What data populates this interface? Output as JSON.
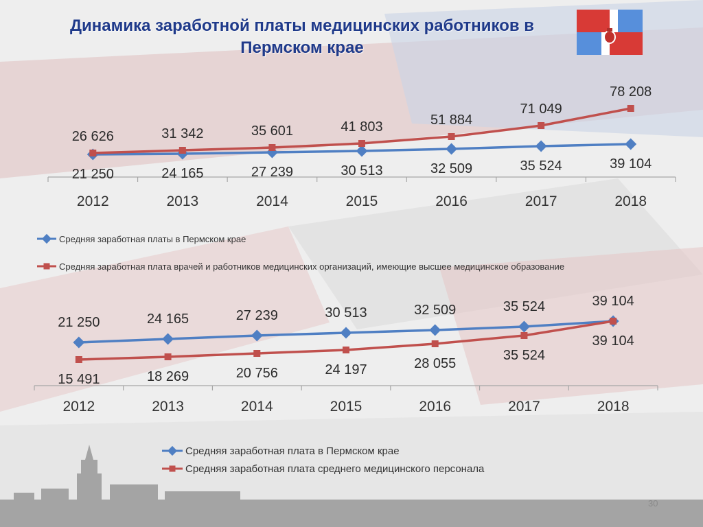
{
  "slide": {
    "title_line1": "Динамика заработной платы   медицинских работников в",
    "title_line2": "Пермском крае",
    "page_number": "30"
  },
  "colors": {
    "blue": "#4f7fc3",
    "red": "#c0504d",
    "title": "#1f3a8a"
  },
  "chart_data": [
    {
      "type": "line",
      "categories": [
        "2012",
        "2013",
        "2014",
        "2015",
        "2016",
        "2017",
        "2018"
      ],
      "series": [
        {
          "name": "Средняя заработная платы в Пермском крае",
          "values": [
            21250,
            24165,
            27239,
            30513,
            32509,
            35524,
            39104
          ],
          "labels": [
            "21 250",
            "24 165",
            "27 239",
            "30 513",
            "32 509",
            "35 524",
            "39 104"
          ],
          "color": "#4f7fc3",
          "label_position": "below"
        },
        {
          "name": "Средняя заработная плата врачей и работников медицинских организаций, имеющие высшее медицинское образование",
          "values": [
            26626,
            31342,
            35601,
            41803,
            51884,
            71049,
            78208
          ],
          "labels": [
            "26 626",
            "31 342",
            "35 601",
            "41 803",
            "51 884",
            "71 049",
            "78 208"
          ],
          "color": "#c0504d",
          "label_position": "above"
        }
      ],
      "legend": "bottom"
    },
    {
      "type": "line",
      "categories": [
        "2012",
        "2013",
        "2014",
        "2015",
        "2016",
        "2017",
        "2018"
      ],
      "series": [
        {
          "name": "Средняя заработная плата в Пермском крае",
          "values": [
            21250,
            24165,
            27239,
            30513,
            32509,
            35524,
            39104
          ],
          "labels": [
            "21 250",
            "24 165",
            "27 239",
            "30 513",
            "32 509",
            "35 524",
            "39 104"
          ],
          "color": "#4f7fc3",
          "label_position": "above"
        },
        {
          "name": "Средняя заработная плата среднего медицинского персонала",
          "values": [
            15491,
            18269,
            20756,
            24197,
            28055,
            35524,
            39104
          ],
          "labels": [
            "15 491",
            "18 269",
            "20 756",
            "24 197",
            "28 055",
            "35 524",
            "39 104"
          ],
          "color": "#c0504d",
          "label_position": "below"
        }
      ],
      "legend": "bottom"
    }
  ]
}
